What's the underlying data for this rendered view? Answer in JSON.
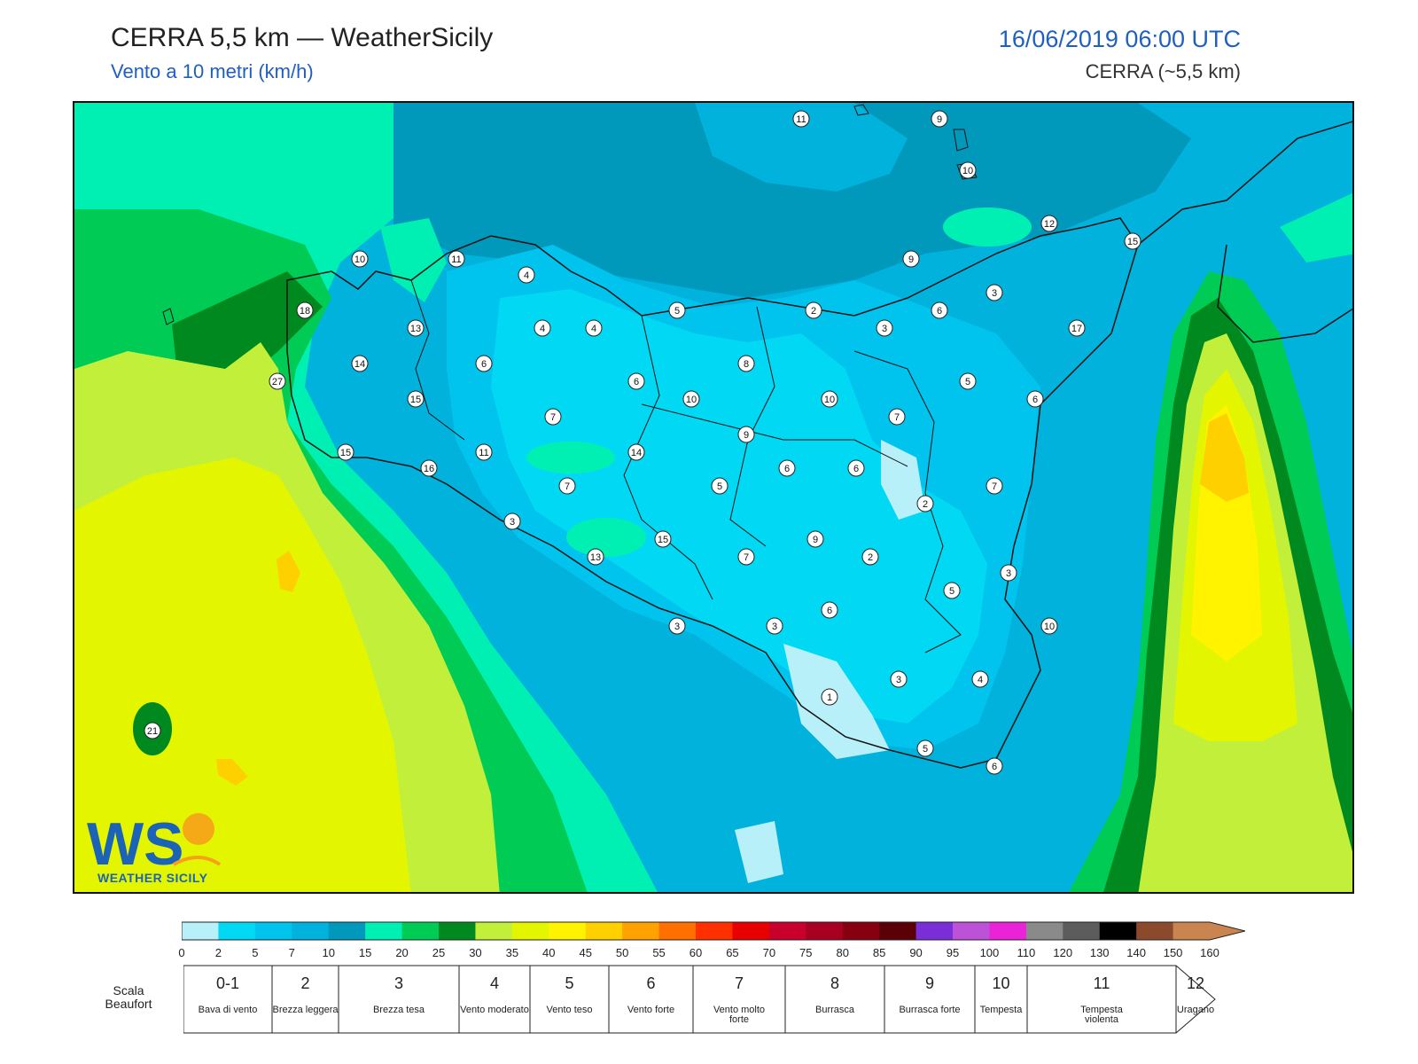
{
  "header": {
    "title": "CERRA 5,5 km — WeatherSicily",
    "subtitle": "Vento a 10 metri (km/h)",
    "datetime": "16/06/2019 06:00 UTC",
    "model": "CERRA (~5,5 km)"
  },
  "logo": {
    "text": "WS",
    "subtitle": "WEATHER SICILY"
  },
  "colorbar": {
    "ticks": [
      "0",
      "2",
      "5",
      "7",
      "10",
      "15",
      "20",
      "25",
      "30",
      "35",
      "40",
      "45",
      "50",
      "55",
      "60",
      "65",
      "70",
      "75",
      "80",
      "85",
      "90",
      "95",
      "100",
      "110",
      "120",
      "130",
      "140",
      "150",
      "160"
    ],
    "colors": [
      "#b7f0f8",
      "#00d8f4",
      "#00c4ee",
      "#00b2dc",
      "#0099bb",
      "#00f0b4",
      "#00cc55",
      "#00891e",
      "#c2f03a",
      "#e4f500",
      "#fff300",
      "#ffd000",
      "#ffa200",
      "#ff7000",
      "#ff3000",
      "#e80000",
      "#c8002b",
      "#a80020",
      "#870012",
      "#5c0008",
      "#7a2ed8",
      "#bc52d8",
      "#ea22d8",
      "#8a8a8a",
      "#5c5c5c",
      "#000000",
      "#8b4a2c",
      "#c9844f"
    ]
  },
  "beaufort": {
    "title": "Scala Beaufort",
    "classes": [
      {
        "num": "0-1",
        "name": "Bava di vento"
      },
      {
        "num": "2",
        "name": "Brezza leggera"
      },
      {
        "num": "3",
        "name": "Brezza tesa"
      },
      {
        "num": "4",
        "name": "Vento moderato"
      },
      {
        "num": "5",
        "name": "Vento teso"
      },
      {
        "num": "6",
        "name": "Vento forte"
      },
      {
        "num": "7",
        "name": "Vento molto forte"
      },
      {
        "num": "8",
        "name": "Burrasca"
      },
      {
        "num": "9",
        "name": "Burrasca forte"
      },
      {
        "num": "10",
        "name": "Tempesta"
      },
      {
        "num": "11",
        "name": "Tempesta violenta"
      },
      {
        "num": "12",
        "name": "Uragano"
      }
    ]
  },
  "stations": [
    "11",
    "9",
    "10",
    "12",
    "15",
    "10",
    "11",
    "4",
    "9",
    "3",
    "18",
    "13",
    "5",
    "2",
    "3",
    "6",
    "4",
    "4",
    "14",
    "27",
    "6",
    "8",
    "17",
    "15",
    "6",
    "10",
    "10",
    "5",
    "6",
    "7",
    "7",
    "9",
    "15",
    "11",
    "14",
    "16",
    "6",
    "6",
    "7",
    "5",
    "3",
    "7",
    "2",
    "15",
    "9",
    "13",
    "7",
    "2",
    "3",
    "5",
    "6",
    "3",
    "3",
    "10",
    "3",
    "4",
    "1",
    "5",
    "6",
    "21"
  ],
  "stations_image_labels": {}
}
